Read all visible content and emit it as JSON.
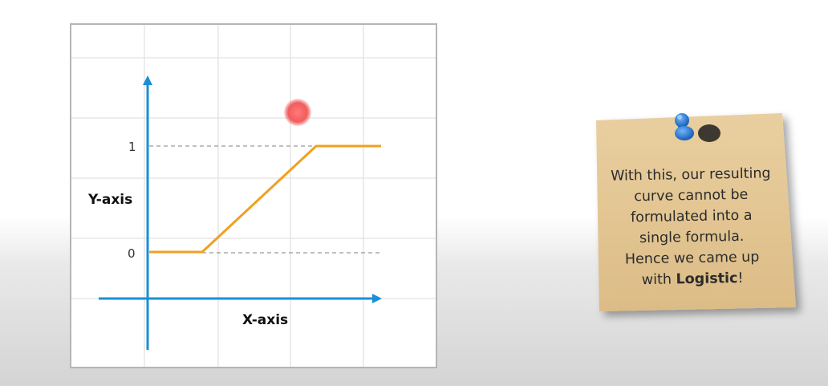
{
  "graph": {
    "y_axis_label": "Y-axis",
    "x_axis_label": "X-axis",
    "tick_1": "1",
    "tick_0": "0",
    "grid": true,
    "colors": {
      "axis": "#1a8fd6",
      "curve": "#f0a020",
      "marker": "#f25c5c",
      "guide": "#9a9a9a"
    }
  },
  "note": {
    "lines": [
      "With this, our resulting",
      "curve cannot be",
      "formulated into a",
      "single formula.",
      "Hence we came up"
    ],
    "last_prefix": "with ",
    "last_bold": "Logistic",
    "last_suffix": "!",
    "pin_color": "#2f7fd0",
    "paper_color": "#e4c796"
  }
}
